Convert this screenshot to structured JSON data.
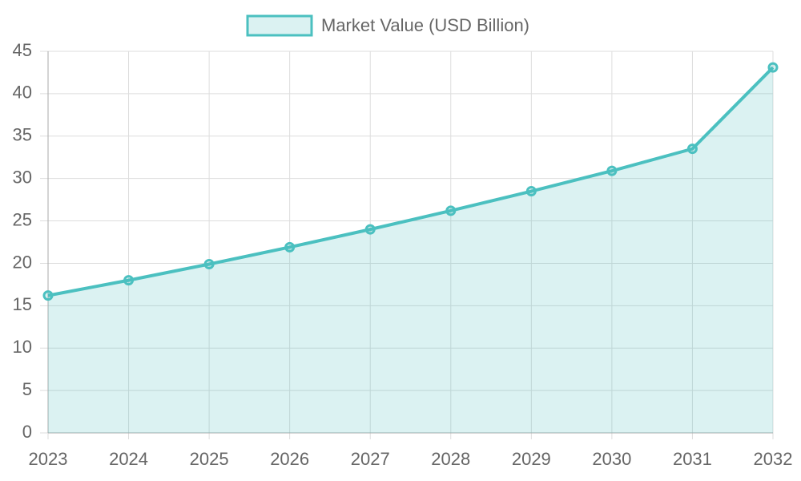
{
  "chart_data": {
    "type": "line",
    "categories": [
      "2023",
      "2024",
      "2025",
      "2026",
      "2027",
      "2028",
      "2029",
      "2030",
      "2031",
      "2032"
    ],
    "series": [
      {
        "name": "Market Value (USD Billion)",
        "color": "#4bc0c0",
        "values": [
          16.2,
          18.0,
          19.9,
          21.9,
          24.0,
          26.2,
          28.5,
          30.9,
          33.5,
          43.1
        ]
      }
    ],
    "fill": true,
    "ylim": [
      0,
      45
    ],
    "yticks": [
      0,
      5,
      10,
      15,
      20,
      25,
      30,
      35,
      40,
      45
    ],
    "grid": true,
    "legend": "top"
  }
}
